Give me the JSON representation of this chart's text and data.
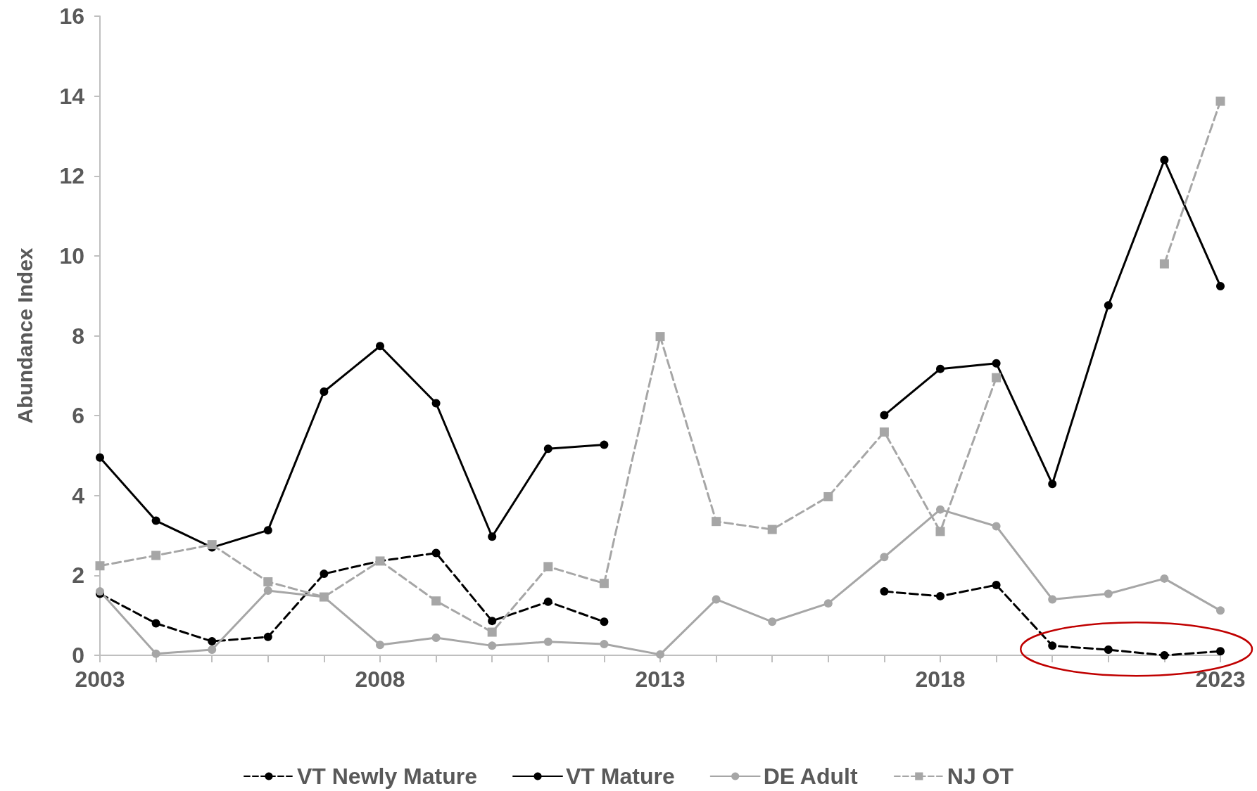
{
  "chart_data": {
    "type": "line",
    "ylabel": "Abundance Index",
    "x": [
      2003,
      2004,
      2005,
      2006,
      2007,
      2008,
      2009,
      2010,
      2011,
      2012,
      2013,
      2014,
      2015,
      2016,
      2017,
      2018,
      2019,
      2020,
      2021,
      2022,
      2023
    ],
    "series": [
      {
        "name": "VT Newly Mature",
        "color": "#000000",
        "line_style": "dashed",
        "marker": "circle",
        "values": [
          1.54,
          0.8,
          0.35,
          0.46,
          2.04,
          2.36,
          2.56,
          0.86,
          1.34,
          0.84,
          null,
          null,
          null,
          null,
          1.6,
          1.48,
          1.76,
          0.24,
          0.14,
          0,
          0.1
        ]
      },
      {
        "name": "VT Mature",
        "color": "#000000",
        "line_style": "solid",
        "marker": "circle",
        "values": [
          4.95,
          3.37,
          2.7,
          3.13,
          6.6,
          7.74,
          6.31,
          2.97,
          5.17,
          5.27,
          null,
          null,
          null,
          null,
          6.01,
          7.17,
          7.31,
          4.29,
          8.76,
          12.4,
          9.24
        ]
      },
      {
        "name": "DE Adult",
        "color": "#a6a6a6",
        "line_style": "solid",
        "marker": "circle",
        "values": [
          1.6,
          0.04,
          0.14,
          1.62,
          1.46,
          0.26,
          0.44,
          0.24,
          0.34,
          0.28,
          0.02,
          1.4,
          0.84,
          1.3,
          2.46,
          3.65,
          3.23,
          1.4,
          1.54,
          1.92,
          1.12
        ]
      },
      {
        "name": "NJ OT",
        "color": "#a6a6a6",
        "line_style": "dashed",
        "marker": "square",
        "values": [
          2.24,
          2.5,
          2.77,
          1.84,
          1.46,
          2.36,
          1.36,
          0.58,
          2.22,
          1.8,
          7.98,
          3.35,
          3.15,
          3.97,
          5.59,
          3.1,
          6.95,
          null,
          null,
          9.8,
          13.87
        ]
      }
    ],
    "xlim": [
      2003,
      2023
    ],
    "xticks": [
      2003,
      {
        "value": 2004,
        "label": null
      },
      {
        "value": 2005,
        "label": null
      },
      {
        "value": 2006,
        "label": null
      },
      {
        "value": 2007,
        "label": null
      },
      2008,
      {
        "value": 2009,
        "label": null
      },
      {
        "value": 2010,
        "label": null
      },
      {
        "value": 2011,
        "label": null
      },
      {
        "value": 2012,
        "label": null
      },
      2013,
      {
        "value": 2014,
        "label": null
      },
      {
        "value": 2015,
        "label": null
      },
      {
        "value": 2016,
        "label": null
      },
      {
        "value": 2017,
        "label": null
      },
      2018,
      {
        "value": 2019,
        "label": null
      },
      {
        "value": 2020,
        "label": null
      },
      {
        "value": 2021,
        "label": null
      },
      {
        "value": 2022,
        "label": null
      },
      2023
    ],
    "ylim": [
      0,
      16
    ],
    "yticks": [
      0,
      2,
      4,
      6,
      8,
      10,
      12,
      14,
      16
    ],
    "grid": false,
    "legend": "bottom"
  }
}
